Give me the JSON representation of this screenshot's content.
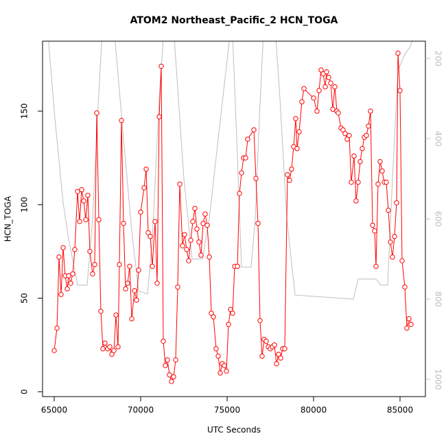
{
  "chart_data": {
    "type": "line",
    "title": "ATOM2 Northeast_Pacific_2 HCN_TOGA",
    "xlabel": "UTC Seconds",
    "ylabel": "HCN_TOGA",
    "xlim": [
      64325,
      86468
    ],
    "xticks": [
      65000,
      70000,
      75000,
      80000,
      85000
    ],
    "ylim": [
      -2.6,
      187.4
    ],
    "yticks": [
      0,
      50,
      100,
      150
    ],
    "y2lim": [
      1043,
      157
    ],
    "y2ticks": [
      200,
      400,
      600,
      800,
      1000
    ],
    "series": [
      {
        "color": "#bebebe",
        "axis": "y2",
        "marker": "none",
        "x": [
          64563,
          65040,
          65516,
          65833,
          66349,
          66904,
          67222,
          67500,
          67817,
          68412,
          68611,
          69008,
          69484,
          69881,
          70397,
          70674,
          71071,
          71388,
          71865,
          72103,
          72500,
          72976,
          73571,
          73968,
          74484,
          74880,
          75277,
          75555,
          75833,
          76388,
          76626,
          76864,
          77142,
          77737,
          78055,
          78452,
          78928,
          82301,
          82579,
          83610,
          83888,
          84285,
          84563,
          84880,
          85277,
          85594,
          85753,
          85912
        ],
        "values": [
          100,
          350,
          560,
          650,
          765,
          765,
          600,
          350,
          100,
          100,
          200,
          400,
          630,
          780,
          787,
          650,
          300,
          100,
          100,
          250,
          500,
          700,
          700,
          600,
          400,
          250,
          100,
          400,
          720,
          720,
          600,
          350,
          100,
          100,
          300,
          600,
          790,
          800,
          750,
          750,
          765,
          765,
          500,
          230,
          190,
          170,
          150,
          100
        ]
      },
      {
        "color": "#ff0000",
        "axis": "y",
        "marker": "circle",
        "x": [
          65000,
          65159,
          65278,
          65397,
          65516,
          65635,
          65754,
          65833,
          65952,
          66071,
          66190,
          66349,
          66468,
          66587,
          66706,
          66825,
          66944,
          67063,
          67222,
          67341,
          67460,
          67579,
          67698,
          67817,
          67936,
          68095,
          68214,
          68333,
          68452,
          68571,
          68690,
          68770,
          68889,
          69008,
          69127,
          69246,
          69365,
          69484,
          69643,
          69762,
          69881,
          70000,
          70198,
          70317,
          70436,
          70555,
          70674,
          70833,
          70952,
          71071,
          71190,
          71309,
          71428,
          71547,
          71666,
          71785,
          71904,
          72023,
          72142,
          72261,
          72420,
          72539,
          72658,
          72777,
          72896,
          73015,
          73134,
          73253,
          73372,
          73492,
          73611,
          73730,
          73849,
          73968,
          74087,
          74206,
          74364,
          74483,
          74602,
          74721,
          74840,
          74960,
          75079,
          75198,
          75317,
          75436,
          75595,
          75714,
          75833,
          75952,
          76071,
          76190,
          76547,
          76666,
          76785,
          76904,
          77023,
          77142,
          77261,
          77380,
          77499,
          77618,
          77737,
          77856,
          77975,
          78094,
          78213,
          78332,
          78491,
          78610,
          78729,
          78848,
          78967,
          79047,
          79166,
          79324,
          79443,
          79999,
          80197,
          80316,
          80436,
          80555,
          80674,
          80753,
          80872,
          80991,
          81110,
          81229,
          81348,
          81428,
          81586,
          81705,
          81824,
          81943,
          82062,
          82181,
          82340,
          82459,
          82578,
          82697,
          82816,
          82935,
          83054,
          83174,
          83293,
          83412,
          83531,
          83610,
          83729,
          83848,
          83967,
          84086,
          84205,
          84324,
          84443,
          84562,
          84681,
          84800,
          84880,
          84999,
          85118,
          85276,
          85396,
          85515,
          85634
        ],
        "values": [
          22,
          34,
          72,
          52,
          77,
          62,
          55,
          62,
          58,
          63,
          76,
          107,
          91,
          108,
          102,
          92,
          105,
          75,
          63,
          68,
          149,
          92,
          43,
          23,
          26,
          23,
          24,
          20,
          22,
          41,
          24,
          68,
          145,
          90,
          55,
          58,
          67,
          39,
          54,
          49,
          65,
          96,
          109,
          119,
          85,
          83,
          67,
          91,
          58,
          147,
          174,
          27,
          14,
          17,
          9,
          5.5,
          8,
          17,
          56,
          111,
          78,
          84,
          76,
          70,
          81,
          91,
          98,
          87,
          80,
          73,
          90,
          95,
          89,
          72,
          42,
          40,
          23,
          19,
          10,
          15,
          14,
          11,
          36,
          44,
          42,
          67,
          67,
          106,
          117,
          125,
          125,
          135,
          140,
          114,
          90,
          38,
          19,
          28,
          27,
          24,
          23,
          24,
          25,
          15,
          20,
          18,
          23,
          23,
          116,
          113,
          119,
          131,
          146,
          130,
          139,
          155,
          162,
          157,
          150,
          161,
          172,
          170,
          163,
          171,
          168,
          165,
          151,
          163,
          150,
          149,
          141,
          140,
          138,
          135,
          137,
          112,
          126,
          102,
          112,
          123,
          130,
          136,
          137,
          142,
          150,
          89,
          86,
          67,
          111,
          123,
          118,
          112,
          112,
          97,
          80,
          72,
          83,
          101,
          181,
          161,
          70,
          56,
          34,
          39,
          36
        ]
      }
    ]
  }
}
